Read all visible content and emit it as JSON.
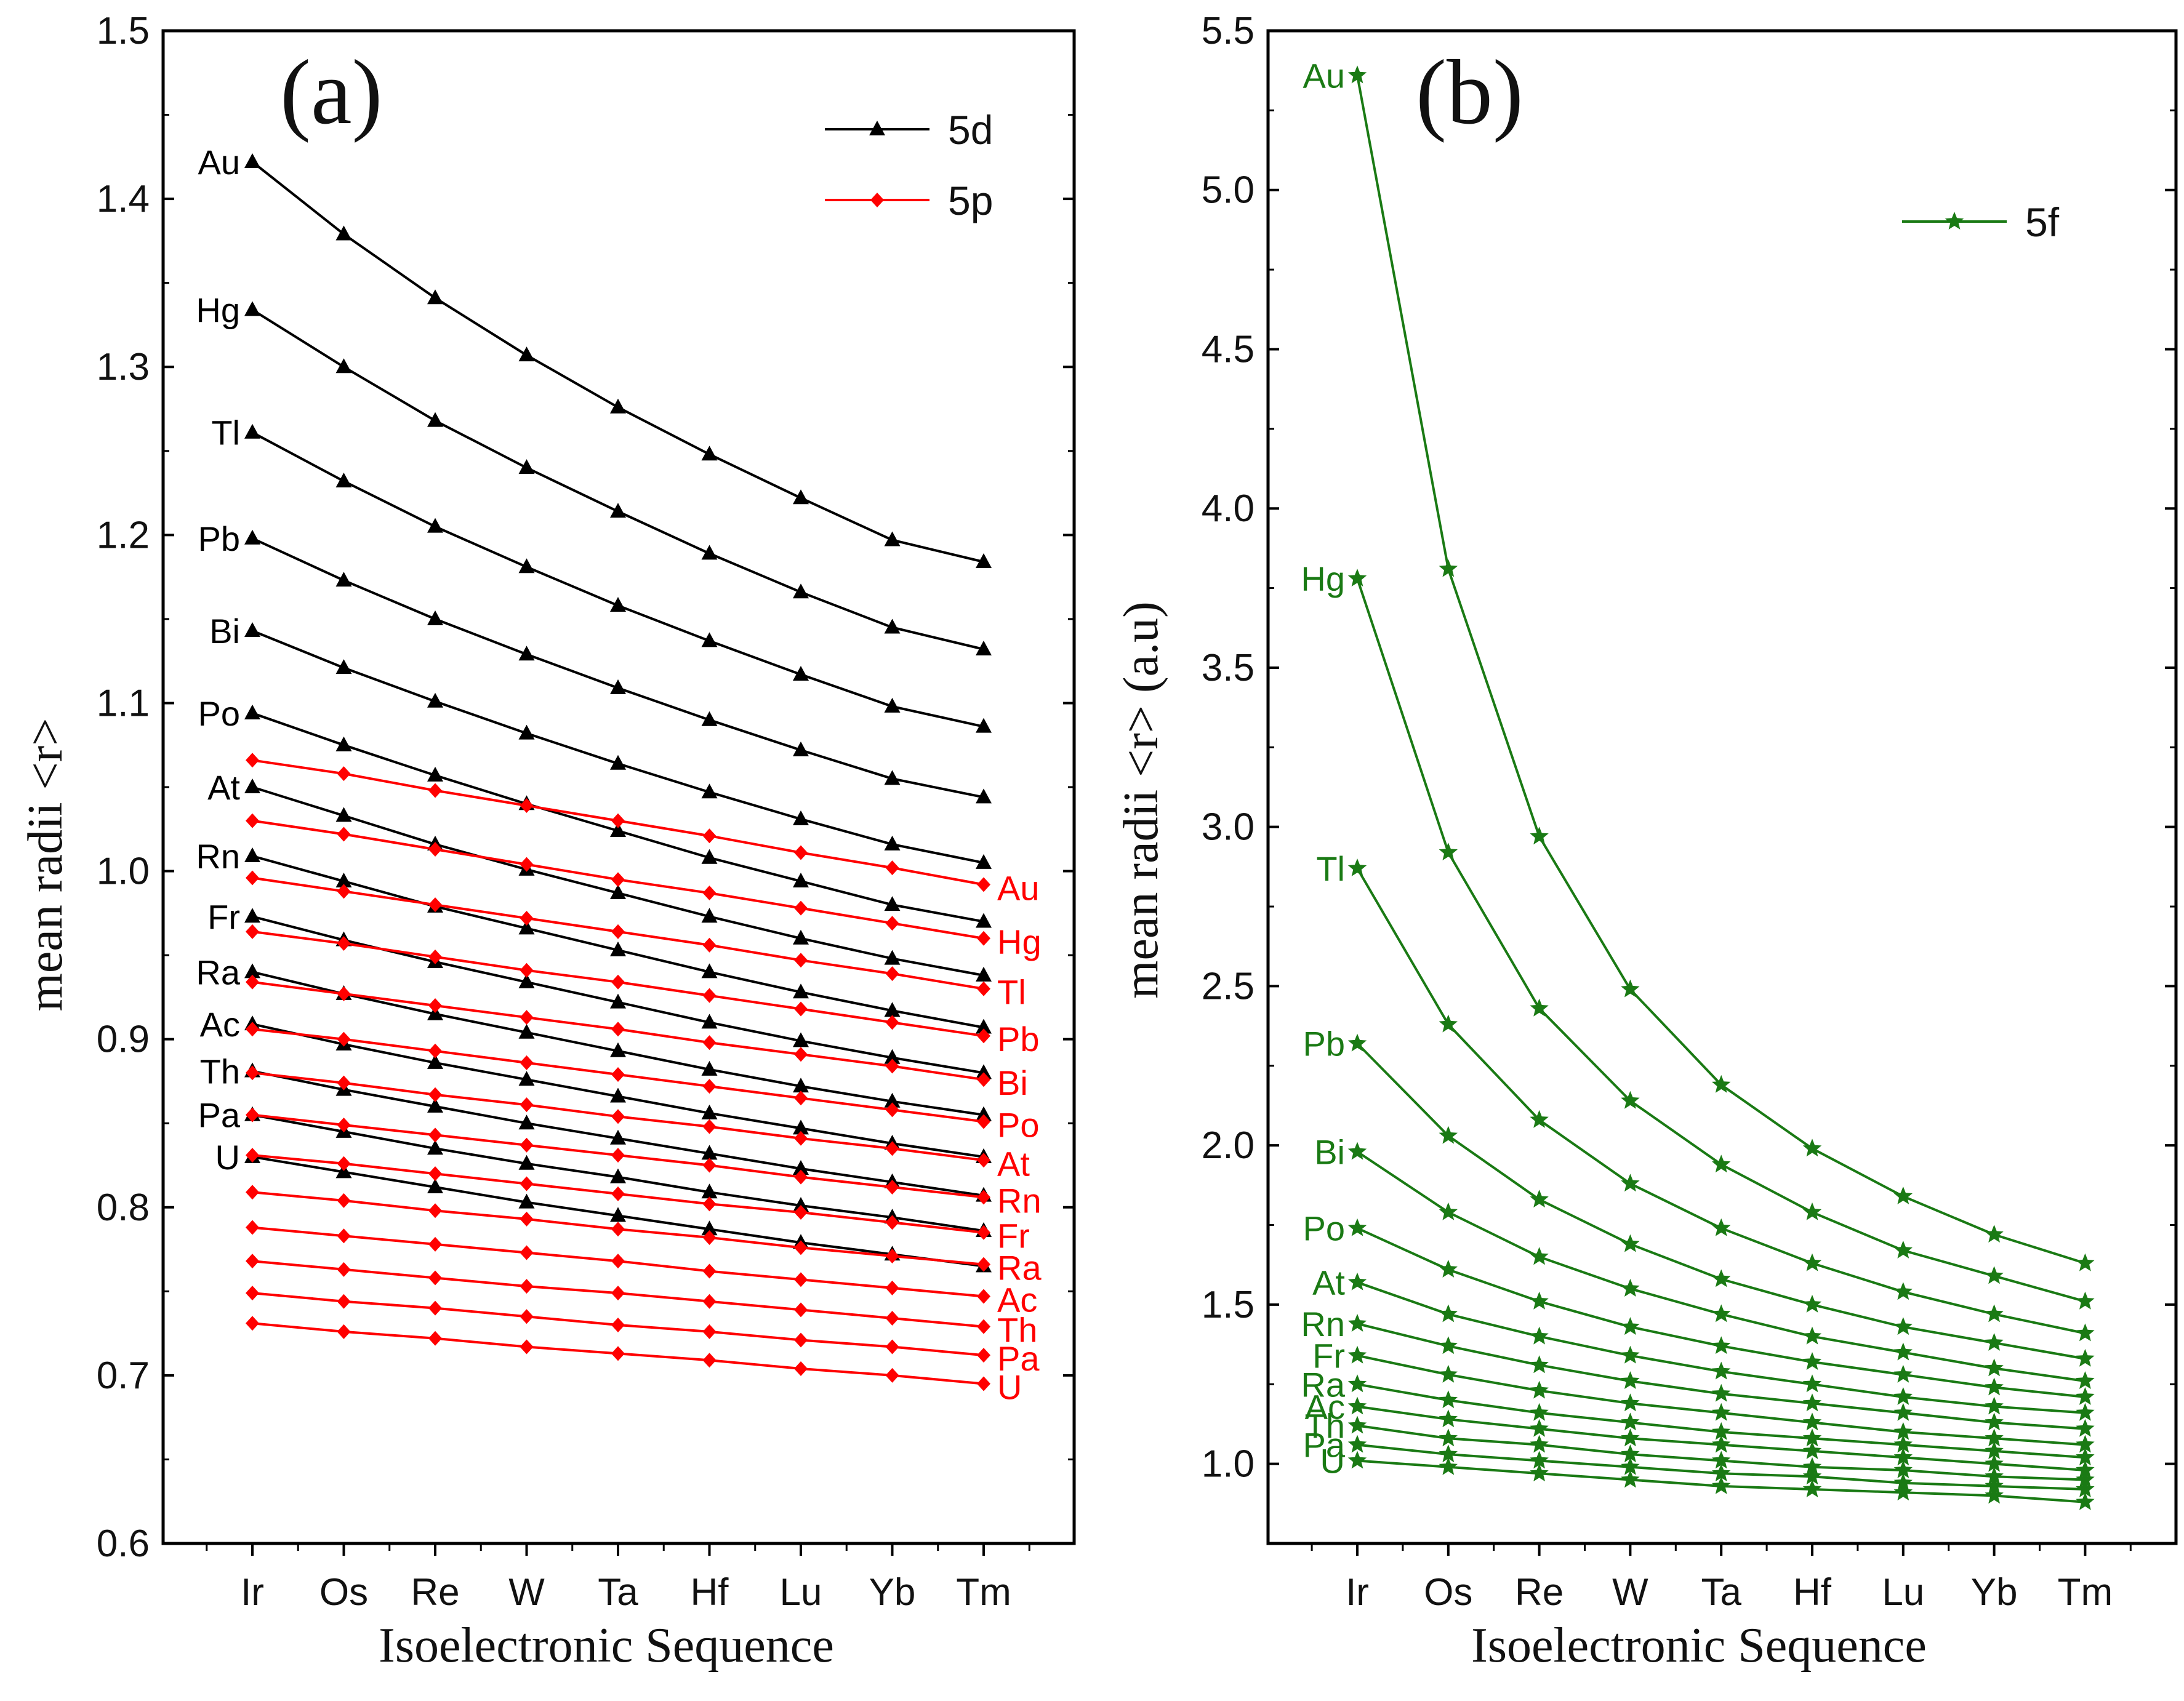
{
  "colors": {
    "d5": "#000000",
    "p5": "#ff0000",
    "f5": "#1a7a14",
    "axis": "#000000"
  },
  "chart_data": [
    {
      "type": "line",
      "panel_label": "(a)",
      "xlabel": "Isoelectronic Sequence",
      "ylabel": "mean radii <r>",
      "categories": [
        "Ir",
        "Os",
        "Re",
        "W",
        "Ta",
        "Hf",
        "Lu",
        "Yb",
        "Tm"
      ],
      "ylim": [
        0.6,
        1.5
      ],
      "yticks": [
        "0.6",
        "0.7",
        "0.8",
        "0.9",
        "1.0",
        "1.1",
        "1.2",
        "1.3",
        "1.4",
        "1.5"
      ],
      "legend": [
        {
          "name": "5d",
          "marker": "triangle",
          "color": "#000000"
        },
        {
          "name": "5p",
          "marker": "diamond",
          "color": "#ff0000"
        }
      ],
      "legend_position": "top-right",
      "series": [
        {
          "group": "5d",
          "name": "Au",
          "values": [
            1.422,
            1.379,
            1.341,
            1.307,
            1.276,
            1.248,
            1.222,
            1.197,
            1.184
          ]
        },
        {
          "group": "5d",
          "name": "Hg",
          "values": [
            1.334,
            1.3,
            1.268,
            1.24,
            1.214,
            1.189,
            1.166,
            1.145,
            1.132
          ]
        },
        {
          "group": "5d",
          "name": "Tl",
          "values": [
            1.261,
            1.232,
            1.205,
            1.181,
            1.158,
            1.137,
            1.117,
            1.098,
            1.086
          ]
        },
        {
          "group": "5d",
          "name": "Pb",
          "values": [
            1.198,
            1.173,
            1.15,
            1.129,
            1.109,
            1.09,
            1.072,
            1.055,
            1.044
          ]
        },
        {
          "group": "5d",
          "name": "Bi",
          "values": [
            1.143,
            1.121,
            1.101,
            1.082,
            1.064,
            1.047,
            1.031,
            1.016,
            1.005
          ]
        },
        {
          "group": "5d",
          "name": "Po",
          "values": [
            1.094,
            1.075,
            1.057,
            1.04,
            1.024,
            1.008,
            0.994,
            0.98,
            0.97
          ]
        },
        {
          "group": "5d",
          "name": "At",
          "values": [
            1.05,
            1.033,
            1.016,
            1.001,
            0.987,
            0.973,
            0.96,
            0.948,
            0.938
          ]
        },
        {
          "group": "5d",
          "name": "Rn",
          "values": [
            1.009,
            0.994,
            0.979,
            0.966,
            0.953,
            0.94,
            0.928,
            0.917,
            0.907
          ]
        },
        {
          "group": "5d",
          "name": "Fr",
          "values": [
            0.973,
            0.959,
            0.946,
            0.934,
            0.922,
            0.91,
            0.899,
            0.889,
            0.88
          ]
        },
        {
          "group": "5d",
          "name": "Ra",
          "values": [
            0.94,
            0.927,
            0.915,
            0.904,
            0.893,
            0.882,
            0.872,
            0.863,
            0.855
          ]
        },
        {
          "group": "5d",
          "name": "Ac",
          "values": [
            0.909,
            0.897,
            0.886,
            0.876,
            0.866,
            0.856,
            0.847,
            0.838,
            0.83
          ]
        },
        {
          "group": "5d",
          "name": "Th",
          "values": [
            0.881,
            0.87,
            0.86,
            0.85,
            0.841,
            0.832,
            0.823,
            0.815,
            0.807
          ]
        },
        {
          "group": "5d",
          "name": "Pa",
          "values": [
            0.855,
            0.845,
            0.835,
            0.826,
            0.818,
            0.809,
            0.801,
            0.794,
            0.786
          ]
        },
        {
          "group": "5d",
          "name": "U",
          "values": [
            0.83,
            0.821,
            0.812,
            0.803,
            0.795,
            0.787,
            0.779,
            0.772,
            0.765
          ]
        },
        {
          "group": "5p",
          "name": "Au",
          "values": [
            1.066,
            1.058,
            1.048,
            1.039,
            1.03,
            1.021,
            1.011,
            1.002,
            0.992
          ]
        },
        {
          "group": "5p",
          "name": "Hg",
          "values": [
            1.03,
            1.022,
            1.013,
            1.004,
            0.995,
            0.987,
            0.978,
            0.969,
            0.96
          ]
        },
        {
          "group": "5p",
          "name": "Tl",
          "values": [
            0.996,
            0.988,
            0.98,
            0.972,
            0.964,
            0.956,
            0.947,
            0.939,
            0.93
          ]
        },
        {
          "group": "5p",
          "name": "Pb",
          "values": [
            0.964,
            0.957,
            0.949,
            0.941,
            0.934,
            0.926,
            0.918,
            0.91,
            0.902
          ]
        },
        {
          "group": "5p",
          "name": "Bi",
          "values": [
            0.934,
            0.927,
            0.92,
            0.913,
            0.906,
            0.898,
            0.891,
            0.884,
            0.876
          ]
        },
        {
          "group": "5p",
          "name": "Po",
          "values": [
            0.906,
            0.9,
            0.893,
            0.886,
            0.879,
            0.872,
            0.865,
            0.858,
            0.851
          ]
        },
        {
          "group": "5p",
          "name": "At",
          "values": [
            0.88,
            0.874,
            0.867,
            0.861,
            0.854,
            0.848,
            0.841,
            0.835,
            0.828
          ]
        },
        {
          "group": "5p",
          "name": "Rn",
          "values": [
            0.855,
            0.849,
            0.843,
            0.837,
            0.831,
            0.825,
            0.818,
            0.812,
            0.806
          ]
        },
        {
          "group": "5p",
          "name": "Fr",
          "values": [
            0.831,
            0.826,
            0.82,
            0.814,
            0.808,
            0.802,
            0.797,
            0.791,
            0.785
          ]
        },
        {
          "group": "5p",
          "name": "Ra",
          "values": [
            0.809,
            0.804,
            0.798,
            0.793,
            0.787,
            0.782,
            0.776,
            0.771,
            0.766
          ]
        },
        {
          "group": "5p",
          "name": "Ac",
          "values": [
            0.788,
            0.783,
            0.778,
            0.773,
            0.768,
            0.762,
            0.757,
            0.752,
            0.747
          ]
        },
        {
          "group": "5p",
          "name": "Th",
          "values": [
            0.768,
            0.763,
            0.758,
            0.753,
            0.749,
            0.744,
            0.739,
            0.734,
            0.729
          ]
        },
        {
          "group": "5p",
          "name": "Pa",
          "values": [
            0.749,
            0.744,
            0.74,
            0.735,
            0.73,
            0.726,
            0.721,
            0.717,
            0.712
          ]
        },
        {
          "group": "5p",
          "name": "U",
          "values": [
            0.731,
            0.726,
            0.722,
            0.717,
            0.713,
            0.709,
            0.704,
            0.7,
            0.695
          ]
        }
      ]
    },
    {
      "type": "line",
      "panel_label": "(b)",
      "xlabel": "Isoelectronic Sequence",
      "ylabel": "mean radii <r> (a.u)",
      "categories": [
        "Ir",
        "Os",
        "Re",
        "W",
        "Ta",
        "Hf",
        "Lu",
        "Yb",
        "Tm"
      ],
      "ylim": [
        0.75,
        5.5
      ],
      "yticks": [
        "1.0",
        "1.5",
        "2.0",
        "2.5",
        "3.0",
        "3.5",
        "4.0",
        "4.5",
        "5.0",
        "5.5"
      ],
      "legend": [
        {
          "name": "5f",
          "marker": "star",
          "color": "#1a7a14"
        }
      ],
      "legend_position": "top-right",
      "series": [
        {
          "group": "5f",
          "name": "Au",
          "start": 0,
          "values": [
            5.36,
            3.81,
            2.97,
            2.49,
            2.19,
            1.99,
            1.84,
            1.72,
            1.63
          ]
        },
        {
          "group": "5f",
          "name": "Hg",
          "start": 0,
          "values": [
            3.78,
            2.92,
            2.43,
            2.14,
            1.94,
            1.79,
            1.67,
            1.59,
            1.51
          ]
        },
        {
          "group": "5f",
          "name": "Tl",
          "start": 0,
          "values": [
            2.87,
            2.38,
            2.08,
            1.88,
            1.74,
            1.63,
            1.54,
            1.47,
            1.41
          ]
        },
        {
          "group": "5f",
          "name": "Pb",
          "start": 0,
          "values": [
            2.32,
            2.03,
            1.83,
            1.69,
            1.58,
            1.5,
            1.43,
            1.38,
            1.33
          ]
        },
        {
          "group": "5f",
          "name": "Bi",
          "start": 0,
          "values": [
            1.98,
            1.79,
            1.65,
            1.55,
            1.47,
            1.4,
            1.35,
            1.3,
            1.26
          ]
        },
        {
          "group": "5f",
          "name": "Po",
          "start": 0,
          "values": [
            1.74,
            1.61,
            1.51,
            1.43,
            1.37,
            1.32,
            1.28,
            1.24,
            1.21
          ]
        },
        {
          "group": "5f",
          "name": "At",
          "start": 0,
          "values": [
            1.57,
            1.47,
            1.4,
            1.34,
            1.29,
            1.25,
            1.21,
            1.18,
            1.16
          ]
        },
        {
          "group": "5f",
          "name": "Rn",
          "start": 0,
          "values": [
            1.44,
            1.37,
            1.31,
            1.26,
            1.22,
            1.19,
            1.16,
            1.13,
            1.11
          ]
        },
        {
          "group": "5f",
          "name": "Fr",
          "start": 0,
          "values": [
            1.34,
            1.28,
            1.23,
            1.19,
            1.16,
            1.13,
            1.1,
            1.08,
            1.06
          ]
        },
        {
          "group": "5f",
          "name": "Ra",
          "start": 0,
          "values": [
            1.25,
            1.2,
            1.16,
            1.13,
            1.1,
            1.08,
            1.06,
            1.04,
            1.02
          ]
        },
        {
          "group": "5f",
          "name": "Ac",
          "start": 0,
          "values": [
            1.18,
            1.14,
            1.11,
            1.08,
            1.06,
            1.04,
            1.02,
            1.0,
            0.98
          ]
        },
        {
          "group": "5f",
          "name": "Th",
          "start": 0,
          "values": [
            1.12,
            1.08,
            1.06,
            1.03,
            1.01,
            0.99,
            0.98,
            0.96,
            0.95
          ]
        },
        {
          "group": "5f",
          "name": "Pa",
          "start": 0,
          "values": [
            1.06,
            1.03,
            1.01,
            0.99,
            0.97,
            0.96,
            0.94,
            0.93,
            0.92
          ]
        },
        {
          "group": "5f",
          "name": "U",
          "start": 0,
          "values": [
            1.01,
            0.99,
            0.97,
            0.95,
            0.93,
            0.92,
            0.91,
            0.9,
            0.88
          ]
        }
      ]
    }
  ]
}
